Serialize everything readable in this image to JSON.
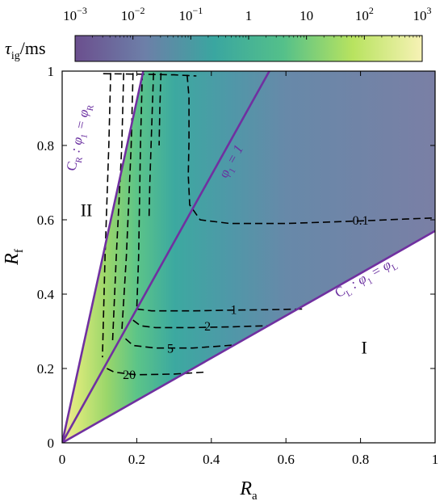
{
  "chart_data": {
    "type": "heatmap",
    "colorbar": {
      "title_sym": "τ",
      "title_sub": "ig",
      "title_unit": "/ms",
      "ticks": [
        {
          "base": "10",
          "exp": "−3",
          "value": 0.001
        },
        {
          "base": "10",
          "exp": "−2",
          "value": 0.01
        },
        {
          "base": "10",
          "exp": "−1",
          "value": 0.1
        },
        {
          "base": "1",
          "exp": "",
          "value": 1
        },
        {
          "base": "10",
          "exp": "",
          "value": 10
        },
        {
          "base": "10",
          "exp": "2",
          "value": 100
        },
        {
          "base": "10",
          "exp": "3",
          "value": 1000
        }
      ],
      "scale": "log",
      "colormap": [
        "#6b4f8e",
        "#6d7fa8",
        "#3aa6a0",
        "#54c08a",
        "#b8e35f",
        "#f7f2b6"
      ]
    },
    "x_axis": {
      "label_main": "R",
      "label_sub": "a",
      "min": 0,
      "max": 1,
      "ticks": [
        "0",
        "0.2",
        "0.4",
        "0.6",
        "0.8",
        "1"
      ]
    },
    "y_axis": {
      "label_main": "R",
      "label_sub": "f",
      "min": 0,
      "max": 1,
      "ticks": [
        "0",
        "0.2",
        "0.4",
        "0.6",
        "0.8",
        "1"
      ]
    },
    "boundary_lines": [
      {
        "id": "CR",
        "label": "C",
        "label_sub": "R",
        "label_rest": " : φ",
        "label_sub2": "1",
        "label_tail": " = φ",
        "label_sub3": "R",
        "slope": 4.6,
        "color": "#7030a0"
      },
      {
        "id": "phi1",
        "label": "φ",
        "label_sub": "1",
        "label_rest": " = 1",
        "slope": 1.8,
        "color": "#7030a0"
      },
      {
        "id": "CL",
        "label": "C",
        "label_sub": "L",
        "label_rest": " : φ",
        "label_sub2": "1",
        "label_tail": " = φ",
        "label_sub3": "L",
        "slope": 0.57,
        "color": "#7030a0"
      }
    ],
    "regions": [
      {
        "label": "I",
        "x": 0.81,
        "y": 0.24
      },
      {
        "label": "II",
        "x": 0.065,
        "y": 0.61
      }
    ],
    "contours": [
      {
        "value": "0.1",
        "label_at": [
          0.8,
          0.6
        ],
        "points": [
          [
            0.335,
            0.99
          ],
          [
            0.34,
            0.93
          ],
          [
            0.34,
            0.81
          ],
          [
            0.338,
            0.72
          ],
          [
            0.342,
            0.64
          ],
          [
            0.37,
            0.6
          ],
          [
            0.45,
            0.59
          ],
          [
            0.6,
            0.59
          ],
          [
            0.8,
            0.597
          ],
          [
            0.92,
            0.602
          ],
          [
            1.0,
            0.605
          ]
        ]
      },
      {
        "value": "1",
        "label_at": [
          0.46,
          0.36
        ],
        "points": [
          [
            0.2,
            0.36
          ],
          [
            0.24,
            0.355
          ],
          [
            0.35,
            0.355
          ],
          [
            0.45,
            0.357
          ],
          [
            0.55,
            0.358
          ],
          [
            0.65,
            0.36
          ]
        ]
      },
      {
        "value": "2",
        "label_at": [
          0.39,
          0.315
        ],
        "points": [
          [
            0.19,
            0.33
          ],
          [
            0.21,
            0.315
          ],
          [
            0.25,
            0.31
          ],
          [
            0.35,
            0.31
          ],
          [
            0.45,
            0.312
          ],
          [
            0.55,
            0.315
          ]
        ]
      },
      {
        "value": "5",
        "label_at": [
          0.29,
          0.255
        ],
        "points": [
          [
            0.17,
            0.28
          ],
          [
            0.19,
            0.262
          ],
          [
            0.25,
            0.255
          ],
          [
            0.35,
            0.255
          ],
          [
            0.42,
            0.26
          ],
          [
            0.46,
            0.263
          ]
        ]
      },
      {
        "value": "20",
        "label_at": [
          0.18,
          0.185
        ],
        "points": [
          [
            0.12,
            0.2
          ],
          [
            0.14,
            0.19
          ],
          [
            0.2,
            0.183
          ],
          [
            0.3,
            0.185
          ],
          [
            0.38,
            0.19
          ]
        ]
      }
    ],
    "vertical_contours": [
      [
        [
          0.13,
          0.995
        ],
        [
          0.125,
          0.8
        ],
        [
          0.115,
          0.5
        ],
        [
          0.108,
          0.23
        ]
      ],
      [
        [
          0.165,
          0.995
        ],
        [
          0.16,
          0.8
        ],
        [
          0.145,
          0.5
        ],
        [
          0.135,
          0.27
        ]
      ],
      [
        [
          0.19,
          0.995
        ],
        [
          0.185,
          0.8
        ],
        [
          0.172,
          0.5
        ],
        [
          0.16,
          0.3
        ]
      ],
      [
        [
          0.215,
          0.995
        ],
        [
          0.21,
          0.8
        ],
        [
          0.205,
          0.5
        ],
        [
          0.2,
          0.36
        ]
      ],
      [
        [
          0.245,
          0.995
        ],
        [
          0.24,
          0.85
        ],
        [
          0.235,
          0.7
        ],
        [
          0.233,
          0.6
        ]
      ],
      [
        [
          0.265,
          0.995
        ],
        [
          0.262,
          0.9
        ],
        [
          0.26,
          0.8
        ]
      ]
    ],
    "top_contour": [
      [
        0.11,
        0.993
      ],
      [
        0.2,
        0.992
      ],
      [
        0.3,
        0.99
      ],
      [
        0.36,
        0.987
      ]
    ]
  }
}
